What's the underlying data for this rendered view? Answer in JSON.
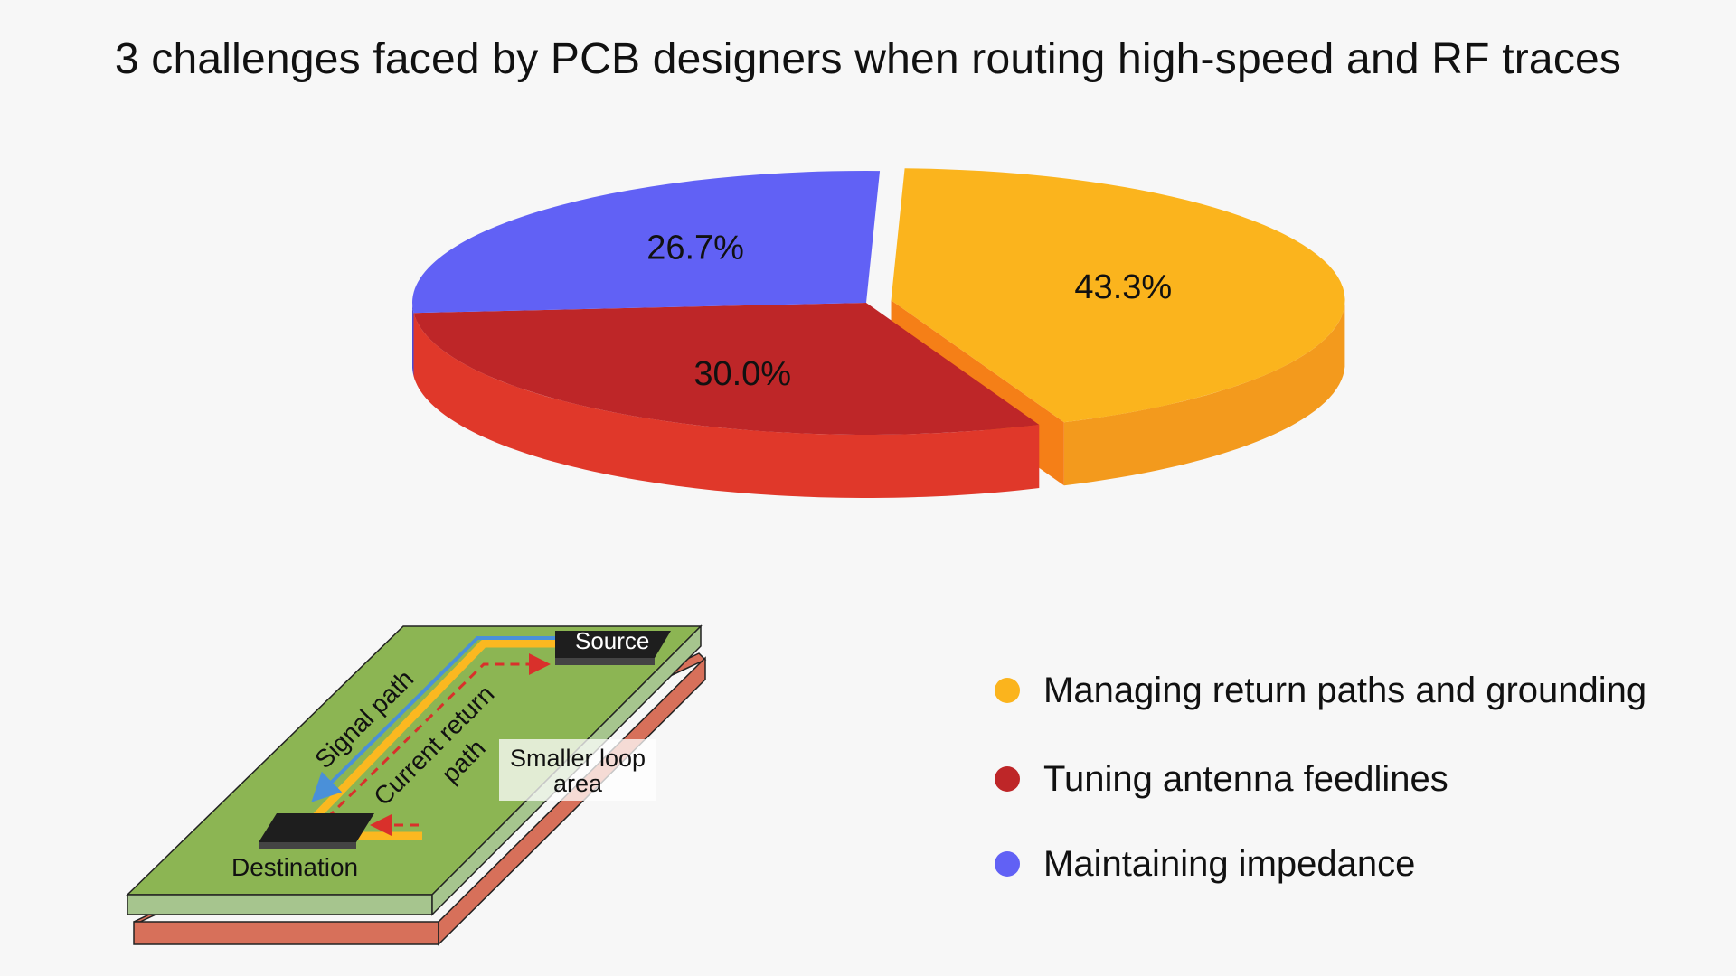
{
  "chart_data": {
    "type": "pie",
    "title": "3 challenges faced by PCB designers when routing high-speed and RF traces",
    "style": "3d",
    "slices": [
      {
        "label": "Managing return paths and grounding",
        "value": 43.3,
        "value_label": "43.3%",
        "color": "#FBB41D",
        "side_color": "#F39A1D"
      },
      {
        "label": "Tuning antenna feedlines",
        "value": 30.0,
        "value_label": "30.0%",
        "color": "#BE2628",
        "side_color": "#E0382A"
      },
      {
        "label": "Maintaining impedance",
        "value": 26.7,
        "value_label": "26.7%",
        "color": "#6161F5",
        "side_color": "#4B4BD6"
      }
    ],
    "legend_position": "bottom-right"
  },
  "diagram": {
    "source_label": "Source",
    "destination_label": "Destination",
    "signal_path_label": "Signal path",
    "return_path_label_line1": "Current return",
    "return_path_label_line2": "path",
    "loop_label_line1": "Smaller loop",
    "loop_label_line2": "area",
    "colors": {
      "board_top": "#8CB553",
      "board_side": "#A6C58E",
      "ground_layer": "#D7705A",
      "signal_trace": "#FBB820",
      "signal_arrow": "#4A90D9",
      "return_arrow": "#D9302B",
      "chip": "#1E1E1E"
    }
  }
}
